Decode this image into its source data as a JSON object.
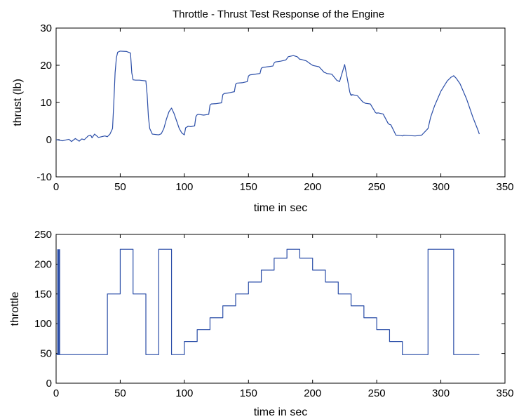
{
  "chart_data": [
    {
      "type": "line",
      "title": "Throttle - Thrust Test Response of the Engine",
      "xlabel": "time in sec",
      "ylabel": "thrust (lb)",
      "xlim": [
        0,
        350
      ],
      "ylim": [
        -10,
        30
      ],
      "xticks": [
        0,
        50,
        100,
        150,
        200,
        250,
        300,
        350
      ],
      "yticks": [
        -10,
        0,
        10,
        20,
        30
      ],
      "grid": false,
      "line_color": "#2b4ea8",
      "series": [
        {
          "x": [
            0,
            5,
            10,
            12,
            15,
            18,
            20,
            22,
            25,
            27,
            28,
            30,
            33,
            38,
            40,
            42,
            44,
            45,
            46,
            47,
            48,
            50,
            55,
            58,
            59,
            60,
            62,
            65,
            70,
            71,
            72,
            73,
            75,
            80,
            82,
            84,
            86,
            88,
            90,
            92,
            94,
            96,
            98,
            100,
            101,
            103,
            105,
            108,
            109,
            110,
            111,
            115,
            119,
            120,
            121,
            125,
            129,
            130,
            131,
            135,
            139,
            140,
            141,
            145,
            149,
            150,
            151,
            155,
            159,
            160,
            161,
            165,
            169,
            170,
            171,
            175,
            179,
            180,
            181,
            185,
            188,
            190,
            191,
            195,
            199,
            200,
            201,
            205,
            209,
            210,
            211,
            215,
            219,
            220,
            221,
            225,
            229,
            229.8,
            230,
            230.5,
            231,
            235,
            239,
            240,
            241,
            245,
            249,
            250,
            251,
            255,
            259,
            260,
            261,
            265,
            269,
            270,
            271,
            275,
            280,
            285,
            290,
            292,
            295,
            300,
            305,
            308,
            310,
            312,
            315,
            320,
            325,
            329,
            330
          ],
          "y": [
            0,
            -0.3,
            0.1,
            -0.5,
            0.3,
            -0.4,
            0.2,
            0,
            1,
            1.2,
            0.5,
            1.5,
            0.6,
            1,
            0.8,
            1.5,
            3,
            10,
            18,
            22,
            23.5,
            23.8,
            23.7,
            23.3,
            18,
            16.1,
            16,
            16,
            15.8,
            12,
            6,
            3,
            1.5,
            1.3,
            1.6,
            3,
            5.5,
            7.5,
            8.5,
            7,
            5,
            3,
            1.8,
            1.3,
            3.2,
            3.6,
            3.5,
            3.7,
            6.2,
            6.7,
            6.8,
            6.6,
            6.8,
            9.3,
            9.6,
            9.7,
            9.9,
            12.1,
            12.4,
            12.6,
            12.9,
            14.9,
            15.2,
            15.3,
            15.6,
            17.1,
            17.4,
            17.6,
            17.8,
            19.2,
            19.4,
            19.6,
            19.8,
            20.6,
            20.9,
            21.1,
            21.4,
            21.8,
            22.3,
            22.6,
            22.3,
            21.6,
            21.6,
            21.2,
            20.2,
            20,
            19.9,
            19.6,
            18.1,
            18,
            17.8,
            17.6,
            15.9,
            15.8,
            15.6,
            20.2,
            12.8,
            12,
            12.2,
            11.9,
            12.1,
            11.8,
            10.2,
            10,
            9.8,
            9.6,
            7.3,
            7.1,
            7.2,
            6.9,
            4.3,
            4.1,
            4,
            1.2,
            1.1,
            1,
            1.2,
            1.1,
            1,
            1.2,
            3,
            6,
            9,
            13,
            15.8,
            16.8,
            17.2,
            16.5,
            15,
            11,
            6,
            2.5,
            1.5
          ]
        }
      ]
    },
    {
      "type": "line",
      "title": "",
      "xlabel": "time in sec",
      "ylabel": "throttle",
      "xlim": [
        0,
        350
      ],
      "ylim": [
        0,
        250
      ],
      "xticks": [
        0,
        50,
        100,
        150,
        200,
        250,
        300,
        350
      ],
      "yticks": [
        0,
        50,
        100,
        150,
        200,
        250
      ],
      "grid": false,
      "line_color": "#2b4ea8",
      "annotation_bar": {
        "x": 2,
        "y0": 48,
        "y1": 225
      },
      "series": [
        {
          "step": true,
          "x": [
            0,
            40,
            50,
            60,
            70,
            80,
            90,
            100,
            110,
            120,
            130,
            140,
            150,
            160,
            170,
            180,
            190,
            200,
            210,
            220,
            230,
            240,
            250,
            260,
            270,
            290,
            310,
            330
          ],
          "y": [
            48,
            150,
            225,
            150,
            48,
            225,
            48,
            70,
            90,
            110,
            130,
            150,
            170,
            190,
            210,
            225,
            210,
            190,
            170,
            150,
            130,
            110,
            90,
            70,
            48,
            225,
            48,
            48
          ]
        }
      ]
    }
  ]
}
